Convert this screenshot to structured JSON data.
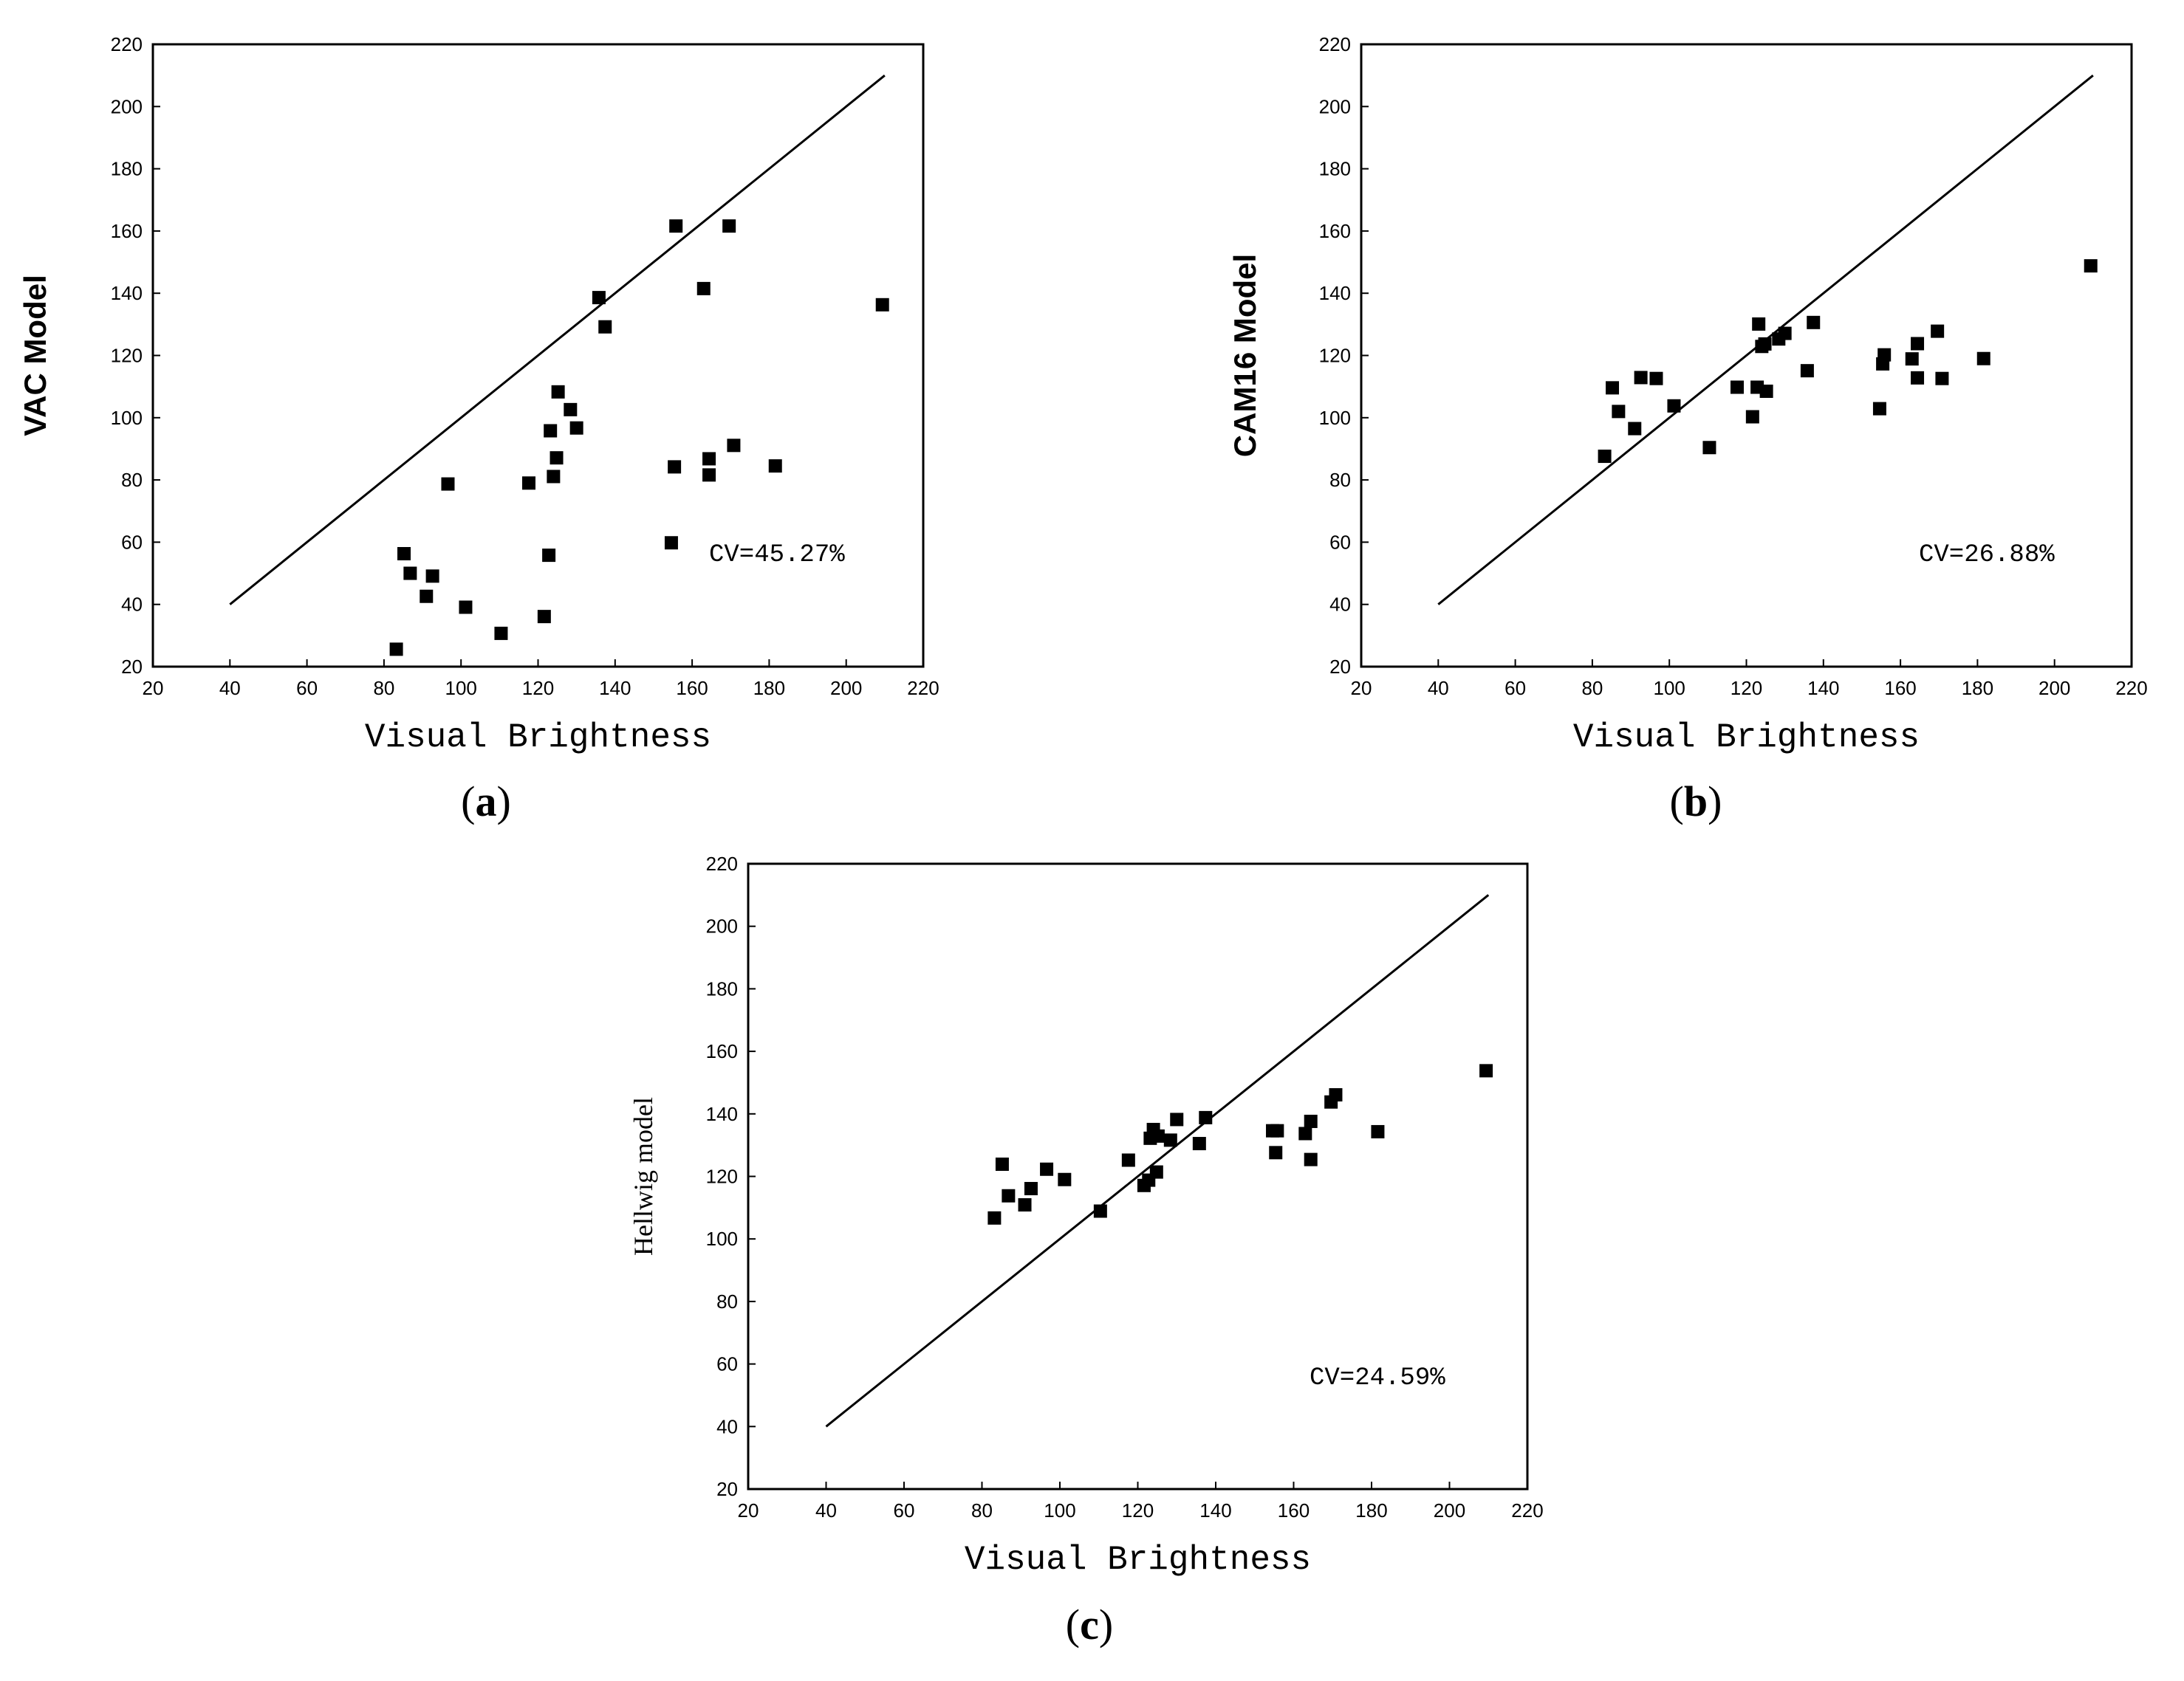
{
  "chart_data": [
    {
      "type": "scatter",
      "panel_label": "a",
      "xlabel": "Visual Brightness",
      "ylabel": "VAC Model",
      "xlim": [
        20,
        220
      ],
      "ylim": [
        20,
        220
      ],
      "xticks": [
        20,
        40,
        60,
        80,
        100,
        120,
        140,
        160,
        180,
        200,
        220
      ],
      "yticks": [
        20,
        40,
        60,
        80,
        100,
        120,
        140,
        160,
        180,
        200,
        220
      ],
      "reference_line": {
        "x": [
          40,
          210
        ],
        "y": [
          40,
          210
        ]
      },
      "annotation": "CV=45.27%",
      "series": [
        {
          "name": "VAC Model",
          "x": [
            83.2,
            85.2,
            86.8,
            91,
            92.6,
            96.6,
            101.2,
            110.4,
            117.6,
            121.6,
            122.8,
            123.2,
            124,
            124.8,
            125.2,
            128.4,
            130,
            135.8,
            137.4,
            154.6,
            155.4,
            155.8,
            163,
            164.4,
            164.4,
            169.6,
            170.8,
            181.6,
            209.4
          ],
          "y": [
            25.6,
            56.3,
            50,
            42.6,
            49.1,
            78.7,
            39.1,
            30.7,
            79,
            36.1,
            55.8,
            95.8,
            81.1,
            87.1,
            108.3,
            102.6,
            96.7,
            138.6,
            129.2,
            59.8,
            84.2,
            161.6,
            141.5,
            86.8,
            81.6,
            161.6,
            91.1,
            84.5,
            136.3
          ]
        }
      ]
    },
    {
      "type": "scatter",
      "panel_label": "b",
      "xlabel": "Visual Brightness",
      "ylabel": "CAM16 Model",
      "xlim": [
        20,
        220
      ],
      "ylim": [
        20,
        220
      ],
      "xticks": [
        20,
        40,
        60,
        80,
        100,
        120,
        140,
        160,
        180,
        200,
        220
      ],
      "yticks": [
        20,
        40,
        60,
        80,
        100,
        120,
        140,
        160,
        180,
        200,
        220
      ],
      "reference_line": {
        "x": [
          40,
          210
        ],
        "y": [
          40,
          210
        ]
      },
      "annotation": "CV=26.88%",
      "series": [
        {
          "name": "CAM16 Model",
          "x": [
            83.2,
            85.2,
            86.8,
            91,
            92.6,
            96.6,
            101.2,
            110.4,
            117.6,
            121.6,
            122.8,
            123.2,
            124,
            124.8,
            125.2,
            128.4,
            130,
            135.8,
            137.4,
            154.6,
            155.4,
            155.8,
            163,
            164.4,
            164.4,
            169.6,
            170.8,
            181.6,
            209.4
          ],
          "y": [
            87.6,
            109.6,
            102,
            96.5,
            112.9,
            112.6,
            103.8,
            90.4,
            109.8,
            100.3,
            109.8,
            130.1,
            122.9,
            123.7,
            108.5,
            125.3,
            127.1,
            115.1,
            130.6,
            102.9,
            117.3,
            120.2,
            118.9,
            123.8,
            112.8,
            127.8,
            112.6,
            119,
            148.8
          ]
        }
      ]
    },
    {
      "type": "scatter",
      "panel_label": "c",
      "xlabel": "Visual Brightness",
      "ylabel": "Hellwig model",
      "xlim": [
        20,
        220
      ],
      "ylim": [
        20,
        220
      ],
      "xticks": [
        20,
        40,
        60,
        80,
        100,
        120,
        140,
        160,
        180,
        200,
        220
      ],
      "yticks": [
        20,
        40,
        60,
        80,
        100,
        120,
        140,
        160,
        180,
        200,
        220
      ],
      "reference_line": {
        "x": [
          40,
          210
        ],
        "y": [
          40,
          210
        ]
      },
      "annotation": "CV=24.59%",
      "series": [
        {
          "name": "Hellwig model",
          "x": [
            83.2,
            85.2,
            86.8,
            91,
            92.6,
            96.6,
            101.2,
            110.4,
            117.6,
            121.6,
            122.8,
            123.2,
            124,
            124.8,
            125.2,
            128.4,
            130,
            135.8,
            137.4,
            154.6,
            155.4,
            155.8,
            163,
            164.4,
            164.4,
            169.6,
            170.8,
            181.6,
            209.4
          ],
          "y": [
            106.7,
            123.9,
            113.8,
            110.9,
            116.1,
            122.3,
            119,
            108.9,
            125.2,
            117.1,
            118.8,
            132.2,
            135,
            121.4,
            132.9,
            131.6,
            138.2,
            130.5,
            138.8,
            134.6,
            127.6,
            134.6,
            133.7,
            125.4,
            137.6,
            143.8,
            146.1,
            134.3,
            153.8
          ]
        }
      ]
    }
  ]
}
